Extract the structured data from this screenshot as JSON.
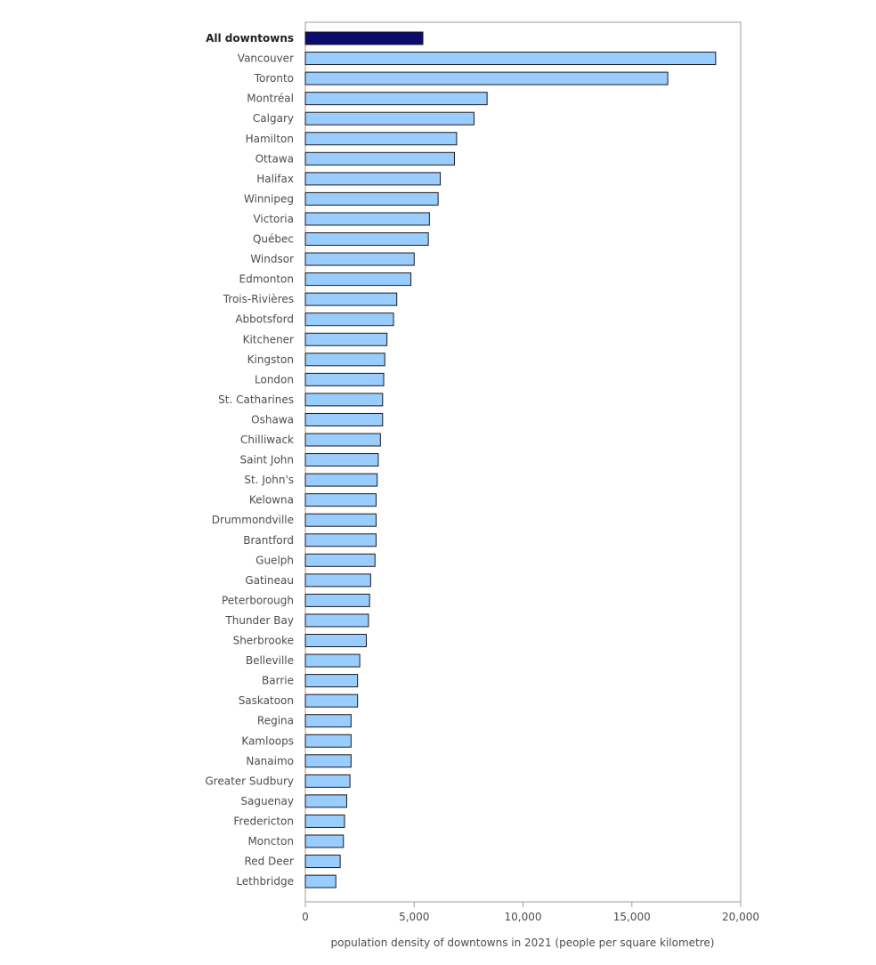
{
  "chart_data": {
    "type": "bar",
    "orientation": "horizontal",
    "title": "",
    "xlabel": "population density of downtowns in 2021 (people per square kilometre)",
    "ylabel": "",
    "xlim": [
      0,
      20000
    ],
    "xticks": [
      0,
      5000,
      10000,
      15000,
      20000
    ],
    "xtick_labels": [
      "0",
      "5,000",
      "10,000",
      "15,000",
      "20,000"
    ],
    "grid": false,
    "legend": "none",
    "colors": {
      "highlight": "#0c0c6e",
      "bar": "#99ccff",
      "outline": "#1a1a1a",
      "frame": "#9e9e9e"
    },
    "highlight_category": "All downtowns",
    "categories": [
      "All downtowns",
      "Vancouver",
      "Toronto",
      "Montréal",
      "Calgary",
      "Hamilton",
      "Ottawa",
      "Halifax",
      "Winnipeg",
      "Victoria",
      "Québec",
      "Windsor",
      "Edmonton",
      "Trois-Rivières",
      "Abbotsford",
      "Kitchener",
      "Kingston",
      "London",
      "St. Catharines",
      "Oshawa",
      "Chilliwack",
      "Saint John",
      "St. John's",
      "Kelowna",
      "Drummondville",
      "Brantford",
      "Guelph",
      "Gatineau",
      "Peterborough",
      "Thunder Bay",
      "Sherbrooke",
      "Belleville",
      "Barrie",
      "Saskatoon",
      "Regina",
      "Kamloops",
      "Nanaimo",
      "Greater Sudbury",
      "Saguenay",
      "Fredericton",
      "Moncton",
      "Red Deer",
      "Lethbridge"
    ],
    "values": [
      5400,
      18850,
      16650,
      8350,
      7750,
      6950,
      6850,
      6200,
      6100,
      5700,
      5650,
      5000,
      4850,
      4200,
      4050,
      3750,
      3650,
      3600,
      3550,
      3550,
      3450,
      3350,
      3300,
      3250,
      3250,
      3250,
      3200,
      3000,
      2950,
      2900,
      2800,
      2500,
      2400,
      2400,
      2100,
      2100,
      2100,
      2050,
      1900,
      1800,
      1750,
      1600,
      1400
    ]
  }
}
